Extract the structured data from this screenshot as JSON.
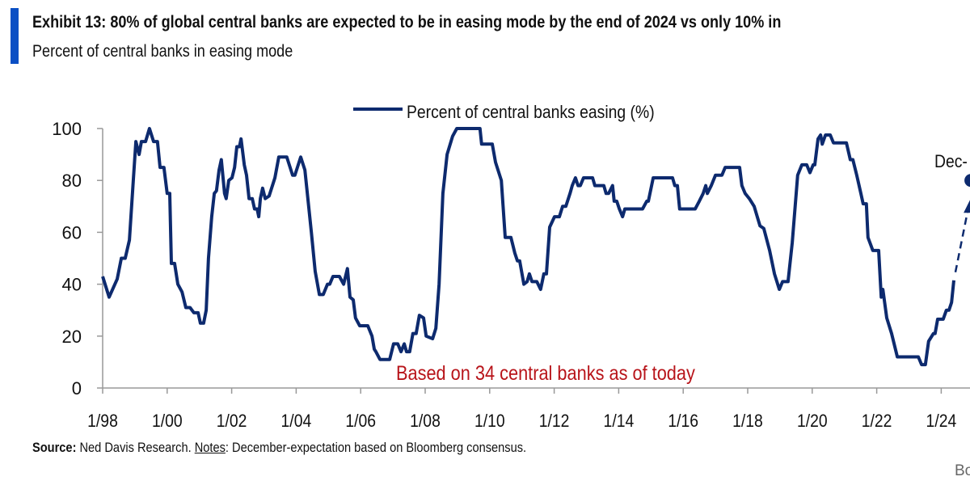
{
  "header": {
    "title": "Exhibit 13: 80% of global central banks are expected to be in easing mode by the end of 2024 vs only 10% in",
    "subtitle": "Percent of central banks in easing mode"
  },
  "footer": {
    "source_label": "Source:",
    "source_text": " Ned Davis Research. ",
    "notes_label": "Notes",
    "notes_text": ": December-expectation based on Bloomberg consensus.",
    "logo_text": "Bo"
  },
  "colors": {
    "accent_bar": "#0a4fc4",
    "series": "#0d2a6e",
    "annotation": "#b8141a",
    "axis": "#999999"
  },
  "chart_data": {
    "type": "line",
    "title": "Exhibit 13: 80% of global central banks are expected to be in easing mode by the end of 2024 vs only 10% in",
    "subtitle": "Percent of central banks in easing mode",
    "legend": {
      "entries": [
        "Percent of central banks easing (%)"
      ],
      "placement": "top-center"
    },
    "ylim": [
      0,
      100
    ],
    "yticks": [
      0,
      20,
      40,
      60,
      80,
      100
    ],
    "xlim": [
      1998.0,
      2025.5
    ],
    "xticks": [
      {
        "year": 1998,
        "label": "1/98"
      },
      {
        "year": 2000,
        "label": "1/00"
      },
      {
        "year": 2002,
        "label": "1/02"
      },
      {
        "year": 2004,
        "label": "1/04"
      },
      {
        "year": 2006,
        "label": "1/06"
      },
      {
        "year": 2008,
        "label": "1/08"
      },
      {
        "year": 2010,
        "label": "1/10"
      },
      {
        "year": 2012,
        "label": "1/12"
      },
      {
        "year": 2014,
        "label": "1/14"
      },
      {
        "year": 2016,
        "label": "1/16"
      },
      {
        "year": 2018,
        "label": "1/18"
      },
      {
        "year": 2020,
        "label": "1/20"
      },
      {
        "year": 2022,
        "label": "1/22"
      },
      {
        "year": 2024,
        "label": "1/24"
      }
    ],
    "grid": false,
    "series": [
      {
        "name": "Percent of central banks easing (%)",
        "x": [
          1998.0,
          1998.2,
          1998.45,
          1998.58,
          1998.7,
          1998.83,
          1998.95,
          1999.03,
          1999.13,
          1999.2,
          1999.33,
          1999.45,
          1999.58,
          1999.7,
          1999.78,
          1999.9,
          2000.0,
          2000.08,
          2000.13,
          2000.23,
          2000.33,
          2000.46,
          2000.58,
          2000.71,
          2000.83,
          2000.96,
          2001.03,
          2001.13,
          2001.21,
          2001.28,
          2001.38,
          2001.46,
          2001.53,
          2001.61,
          2001.68,
          2001.78,
          2001.83,
          2001.91,
          2002.01,
          2002.09,
          2002.16,
          2002.24,
          2002.29,
          2002.39,
          2002.46,
          2002.54,
          2002.64,
          2002.71,
          2002.79,
          2002.84,
          2002.89,
          2002.96,
          2003.04,
          2003.16,
          2003.34,
          2003.46,
          2003.71,
          2003.89,
          2003.96,
          2004.14,
          2004.27,
          2004.47,
          2004.59,
          2004.72,
          2004.84,
          2004.97,
          2005.04,
          2005.14,
          2005.34,
          2005.47,
          2005.59,
          2005.67,
          2005.77,
          2005.84,
          2005.97,
          2006.22,
          2006.35,
          2006.42,
          2006.47,
          2006.6,
          2006.9,
          2007.02,
          2007.15,
          2007.25,
          2007.35,
          2007.42,
          2007.52,
          2007.62,
          2007.72,
          2007.82,
          2007.95,
          2008.03,
          2008.23,
          2008.33,
          2008.43,
          2008.55,
          2008.68,
          2008.85,
          2008.98,
          2009.7,
          2009.75,
          2010.08,
          2010.18,
          2010.36,
          2010.48,
          2010.66,
          2010.78,
          2010.86,
          2010.93,
          2011.06,
          2011.16,
          2011.23,
          2011.31,
          2011.46,
          2011.58,
          2011.68,
          2011.76,
          2011.86,
          2012.01,
          2012.16,
          2012.26,
          2012.36,
          2012.49,
          2012.56,
          2012.66,
          2012.74,
          2012.81,
          2012.91,
          2013.19,
          2013.26,
          2013.54,
          2013.61,
          2013.69,
          2013.81,
          2013.86,
          2013.94,
          2014.02,
          2014.12,
          2014.19,
          2014.74,
          2014.87,
          2014.92,
          2015.07,
          2015.67,
          2015.74,
          2015.82,
          2015.89,
          2016.37,
          2016.5,
          2016.62,
          2016.7,
          2016.75,
          2016.87,
          2017.0,
          2017.2,
          2017.3,
          2017.75,
          2017.82,
          2017.92,
          2018.05,
          2018.2,
          2018.38,
          2018.5,
          2018.68,
          2018.83,
          2018.98,
          2019.08,
          2019.25,
          2019.38,
          2019.55,
          2019.68,
          2019.83,
          2019.93,
          2020.03,
          2020.08,
          2020.18,
          2020.26,
          2020.31,
          2020.41,
          2020.56,
          2020.66,
          2021.06,
          2021.18,
          2021.26,
          2021.38,
          2021.51,
          2021.58,
          2021.68,
          2021.73,
          2021.88,
          2022.06,
          2022.14,
          2022.19,
          2022.31,
          2022.46,
          2022.64,
          2023.29,
          2023.39,
          2023.51,
          2023.61,
          2023.76,
          2023.81,
          2023.89,
          2024.06,
          2024.16,
          2024.24,
          2024.32,
          2024.39
        ],
        "values": [
          43,
          35,
          42,
          50,
          50,
          57,
          80,
          95,
          90,
          95,
          95,
          100,
          95,
          95,
          85,
          85,
          75,
          75,
          48,
          48,
          40,
          37,
          31,
          31,
          29,
          29,
          25,
          25,
          30,
          50,
          66,
          75,
          76,
          84,
          88,
          75,
          73,
          80,
          81,
          85,
          93,
          93,
          96,
          86,
          82,
          73,
          73,
          69,
          69,
          66,
          73,
          77,
          73,
          74,
          81,
          89,
          89,
          82,
          82,
          89,
          84,
          60,
          45,
          36,
          36,
          40,
          40,
          43,
          43,
          40,
          46,
          35,
          34,
          27,
          24,
          24,
          20,
          15,
          14,
          11,
          11,
          17,
          17,
          14,
          17,
          14,
          14,
          21,
          21,
          28,
          27,
          20,
          19,
          23,
          40,
          75,
          90,
          97,
          100,
          100,
          94,
          94,
          87,
          80,
          58,
          58,
          52,
          49,
          49,
          40,
          41,
          44,
          41,
          41,
          38,
          44,
          44,
          62,
          66,
          66,
          70,
          70,
          75,
          78,
          81,
          78,
          78,
          81,
          81,
          78,
          78,
          75,
          75,
          78,
          72,
          72,
          69,
          66,
          69,
          69,
          72,
          72,
          81,
          81,
          78,
          78,
          69,
          69,
          72,
          75,
          78,
          75,
          78,
          82,
          82,
          85,
          85,
          78,
          75,
          73,
          70,
          62.5,
          61.5,
          53,
          44,
          38,
          41,
          41,
          56,
          82,
          86,
          86,
          83,
          86,
          86,
          96,
          97.5,
          94,
          97.5,
          97.5,
          94.5,
          94.5,
          88,
          88,
          82,
          75,
          71,
          71,
          58,
          53,
          53,
          35,
          38,
          27,
          21,
          12,
          12,
          9,
          9,
          18,
          21,
          21,
          26.5,
          26.5,
          30,
          30,
          33,
          41.5
        ]
      }
    ],
    "expectation": {
      "x": 2024.92,
      "value": 80,
      "label": "Dec-"
    },
    "annotations": [
      {
        "text": "Based on 34 central banks as of today"
      }
    ]
  }
}
